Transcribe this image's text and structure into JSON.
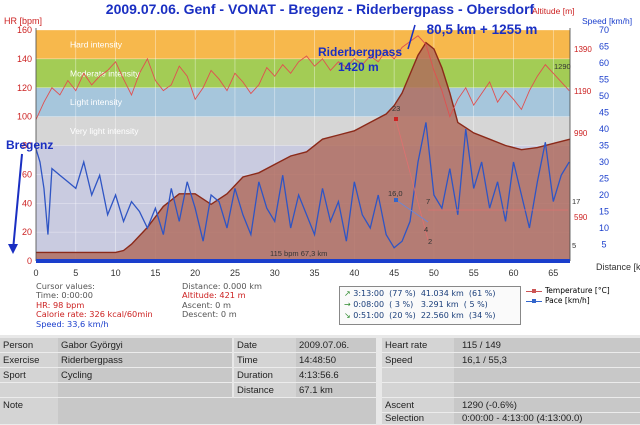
{
  "chart_data": {
    "type": "line",
    "title": "2009.07.06. Genf - VONAT - Bregenz - Riderbergpass - Obersdorf",
    "subtitle": "80,5 km + 1255 m",
    "xlabel": "Distance [km]",
    "ylabel_left": "HR [bpm]",
    "ylabel_right_altitude": "Altitude [m]",
    "ylabel_right_speed": "Speed [km/h]",
    "xlim": [
      0,
      67.1
    ],
    "ylim_hr": [
      0,
      160
    ],
    "ylim_speed": [
      0,
      70
    ],
    "x_ticks": [
      "0",
      "5",
      "10",
      "15",
      "20",
      "25",
      "30",
      "35",
      "40",
      "45",
      "50",
      "55",
      "60",
      "65"
    ],
    "hr_ticks": [
      "0",
      "20",
      "40",
      "60",
      "80",
      "100",
      "120",
      "140",
      "160"
    ],
    "speed_ticks": [
      "5",
      "10",
      "15",
      "20",
      "25",
      "30",
      "35",
      "40",
      "45",
      "50",
      "55",
      "60",
      "65",
      "70"
    ],
    "altitude_ticks": [
      "590",
      "990",
      "1190",
      "1390"
    ],
    "zones": [
      {
        "label": "",
        "from": 0,
        "to": 80,
        "color": "#c9cbe0"
      },
      {
        "label": "Very light intensity",
        "from": 80,
        "to": 100,
        "color": "#d6d6d6"
      },
      {
        "label": "Light intensity",
        "from": 100,
        "to": 120,
        "color": "#a6c6dc"
      },
      {
        "label": "Moderate intensity",
        "from": 120,
        "to": 140,
        "color": "#a3cc55"
      },
      {
        "label": "Hard intensity",
        "from": 140,
        "to": 160,
        "color": "#f7b84c"
      }
    ],
    "series": [
      {
        "name": "Altitude",
        "color": "#8b2a1a",
        "fill": "#b06a5c",
        "unit": "m",
        "x": [
          0,
          2,
          4,
          6,
          8,
          10,
          11,
          12,
          14,
          16,
          18,
          20,
          22,
          24,
          26,
          28,
          30,
          32,
          34,
          36,
          38,
          40,
          42,
          44,
          45,
          46,
          47,
          48,
          49,
          50,
          51,
          52,
          53,
          55,
          57,
          59,
          61,
          63,
          65,
          67.1
        ],
        "y": [
          421,
          421,
          421,
          421,
          421,
          421,
          430,
          460,
          540,
          640,
          700,
          700,
          650,
          700,
          780,
          800,
          840,
          880,
          900,
          960,
          980,
          1000,
          1040,
          1080,
          1120,
          1180,
          1270,
          1360,
          1420,
          1390,
          1300,
          1180,
          1040,
          990,
          960,
          930,
          910,
          920,
          940,
          960
        ]
      },
      {
        "name": "Heart rate",
        "color": "#e05050",
        "unit": "bpm",
        "x": [
          0,
          1,
          2,
          3,
          4,
          5,
          6,
          7,
          8,
          9,
          10,
          11,
          12,
          13,
          14,
          15,
          16,
          17,
          18,
          19,
          20,
          21,
          22,
          23,
          24,
          25,
          26,
          27,
          28,
          29,
          30,
          31,
          32,
          33,
          34,
          35,
          36,
          37,
          38,
          39,
          40,
          41,
          42,
          43,
          44,
          45,
          46,
          47,
          48,
          49,
          50,
          51,
          52,
          53,
          54,
          55,
          56,
          57,
          58,
          59,
          60,
          61,
          62,
          63,
          64,
          65,
          66,
          67
        ],
        "y": [
          98,
          110,
          120,
          115,
          125,
          118,
          130,
          122,
          128,
          132,
          138,
          126,
          115,
          130,
          140,
          125,
          118,
          122,
          135,
          128,
          112,
          120,
          132,
          126,
          118,
          130,
          124,
          116,
          122,
          134,
          128,
          136,
          130,
          138,
          142,
          135,
          140,
          132,
          138,
          134,
          140,
          136,
          142,
          138,
          146,
          140,
          148,
          152,
          156,
          150,
          132,
          118,
          100,
          112,
          120,
          108,
          116,
          124,
          110,
          118,
          112,
          105,
          118,
          128,
          136,
          130,
          124,
          118
        ]
      },
      {
        "name": "Speed",
        "color": "#2f55c4",
        "unit": "km/h",
        "x": [
          0,
          0.5,
          1,
          1.5,
          2,
          3,
          4,
          5,
          6,
          7,
          8,
          9,
          10,
          11,
          12,
          13,
          14,
          15,
          16,
          17,
          18,
          19,
          20,
          21,
          22,
          23,
          24,
          25,
          26,
          27,
          28,
          29,
          30,
          31,
          32,
          33,
          34,
          35,
          36,
          37,
          38,
          39,
          40,
          41,
          42,
          43,
          44,
          45,
          46,
          47,
          48,
          49,
          50,
          51,
          52,
          53,
          54,
          55,
          56,
          57,
          58,
          59,
          60,
          61,
          62,
          63,
          64,
          65,
          66,
          67
        ],
        "y": [
          34,
          30,
          22,
          8,
          28,
          26,
          24,
          22,
          30,
          20,
          26,
          14,
          20,
          12,
          18,
          15,
          10,
          16,
          8,
          22,
          12,
          24,
          16,
          6,
          20,
          18,
          10,
          22,
          14,
          8,
          24,
          16,
          12,
          26,
          10,
          20,
          14,
          8,
          22,
          12,
          18,
          6,
          24,
          14,
          10,
          20,
          8,
          4,
          6,
          12,
          30,
          42,
          20,
          16,
          28,
          14,
          40,
          22,
          30,
          16,
          24,
          12,
          30,
          20,
          10,
          24,
          36,
          18,
          26,
          30
        ]
      },
      {
        "name": "Temperature",
        "color": "#e05050",
        "unit": "°C",
        "x": [],
        "y": []
      }
    ],
    "annotations": [
      {
        "text": "Bregenz",
        "at_km": 0
      },
      {
        "text": "Riderbergpass",
        "at_km": 49
      },
      {
        "text": "1420 m",
        "at_km": 49
      },
      {
        "text": "115 bpm 67,3 km",
        "at_km": 35
      },
      {
        "text": "16,0",
        "at_km": 45
      },
      {
        "text": "23",
        "at_km": 45.5
      },
      {
        "text": "7",
        "at_km": 48.5
      },
      {
        "text": "2",
        "at_km": 48.5
      },
      {
        "text": "1290",
        "at_km": 66
      },
      {
        "text": "17",
        "at_km": 67
      },
      {
        "text": "5",
        "at_km": 67
      },
      {
        "text": "4",
        "at_km": 45
      }
    ]
  },
  "cursor_values": {
    "heading": "Cursor values:",
    "time": "Time: 0:00:00",
    "hr": "HR: 98 bpm",
    "calorie": "Calorie rate: 326 kcal/60min",
    "speed": "Speed: 33,6 km/h",
    "distance": "Distance: 0.000 km",
    "altitude": "Altitude: 421 m",
    "ascent": "Ascent: 0 m",
    "descent": "Descent: 0 m"
  },
  "intensity_summary": {
    "rows": [
      {
        "icon": "↗",
        "text": "3:13:00  (77 %)  41.034 km  (61 %)"
      },
      {
        "icon": "→",
        "text": "0:08:00  ( 3 %)   3.291 km  ( 5 %)"
      },
      {
        "icon": "↘",
        "text": "0:51:00  (20 %)  22.560 km  (34 %)"
      }
    ]
  },
  "legend": {
    "temperature": "Temperature [°C]",
    "pace": "Pace [km/h]"
  },
  "details": {
    "person_label": "Person",
    "person_value": "Gabor Györgyi",
    "exercise_label": "Exercise",
    "exercise_value": "Riderbergpass",
    "sport_label": "Sport",
    "sport_value": "Cycling",
    "note_label": "Note",
    "note_value": "",
    "date_label": "Date",
    "date_value": "2009.07.06.",
    "time_label": "Time",
    "time_value": "14:48:50",
    "duration_label": "Duration",
    "duration_value": "4:13:56.6",
    "distance_label": "Distance",
    "distance_value": "67.1 km",
    "hr_label": "Heart rate",
    "hr_value": "115 / 149",
    "speed_label": "Speed",
    "speed_value": "16,1 / 55,3",
    "ascent_label": "Ascent",
    "ascent_value": "1290 (-0.6%)",
    "selection_label": "Selection",
    "selection_value": "0:00:00 - 4:13:00 (4:13:00.0)"
  },
  "colors": {
    "title": "#1a2fc2",
    "axis_left": "#cc2222",
    "axis_right": "#1a3ecc",
    "baseline": "#1a3ecc"
  }
}
